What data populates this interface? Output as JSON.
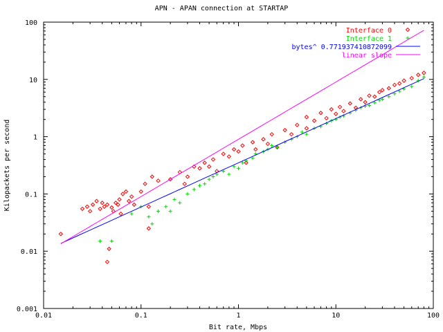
{
  "chart_data": {
    "type": "scatter",
    "title": "APN - APAN connection at STARTAP",
    "xlabel": "Bit rate, Mbps",
    "ylabel": "Kilopackets per second",
    "xscale": "log",
    "yscale": "log",
    "xlim": [
      0.01,
      100
    ],
    "ylim": [
      0.001,
      100
    ],
    "x_ticks": [
      "0.01",
      "0.1",
      "1",
      "10",
      "100"
    ],
    "y_ticks": [
      "0.001",
      "0.01",
      "0.1",
      "1",
      "10",
      "100"
    ],
    "grid": false,
    "legend_position": "top-right",
    "series": [
      {
        "name": "Interface 0",
        "kind": "points",
        "marker": "diamond",
        "color": "#ff0000",
        "points": [
          [
            0.015,
            0.02
          ],
          [
            0.025,
            0.055
          ],
          [
            0.028,
            0.06
          ],
          [
            0.03,
            0.05
          ],
          [
            0.032,
            0.065
          ],
          [
            0.035,
            0.075
          ],
          [
            0.038,
            0.055
          ],
          [
            0.04,
            0.07
          ],
          [
            0.042,
            0.06
          ],
          [
            0.045,
            0.065
          ],
          [
            0.045,
            0.0065
          ],
          [
            0.047,
            0.011
          ],
          [
            0.05,
            0.058
          ],
          [
            0.052,
            0.05
          ],
          [
            0.055,
            0.07
          ],
          [
            0.058,
            0.065
          ],
          [
            0.06,
            0.08
          ],
          [
            0.062,
            0.045
          ],
          [
            0.065,
            0.1
          ],
          [
            0.07,
            0.11
          ],
          [
            0.075,
            0.075
          ],
          [
            0.08,
            0.09
          ],
          [
            0.085,
            0.065
          ],
          [
            0.1,
            0.11
          ],
          [
            0.11,
            0.15
          ],
          [
            0.12,
            0.06
          ],
          [
            0.12,
            0.025
          ],
          [
            0.13,
            0.2
          ],
          [
            0.15,
            0.17
          ],
          [
            0.2,
            0.18
          ],
          [
            0.25,
            0.24
          ],
          [
            0.28,
            0.15
          ],
          [
            0.3,
            0.2
          ],
          [
            0.35,
            0.3
          ],
          [
            0.4,
            0.28
          ],
          [
            0.45,
            0.35
          ],
          [
            0.5,
            0.3
          ],
          [
            0.55,
            0.4
          ],
          [
            0.6,
            0.25
          ],
          [
            0.7,
            0.5
          ],
          [
            0.8,
            0.45
          ],
          [
            0.9,
            0.6
          ],
          [
            1.0,
            0.55
          ],
          [
            1.1,
            0.7
          ],
          [
            1.2,
            0.35
          ],
          [
            1.4,
            0.8
          ],
          [
            1.5,
            0.6
          ],
          [
            1.8,
            0.9
          ],
          [
            2.0,
            0.75
          ],
          [
            2.2,
            1.1
          ],
          [
            2.5,
            0.65
          ],
          [
            3.0,
            1.3
          ],
          [
            3.5,
            1.1
          ],
          [
            4.0,
            1.6
          ],
          [
            5.0,
            1.4
          ],
          [
            5.0,
            2.2
          ],
          [
            6.0,
            1.9
          ],
          [
            7.0,
            2.6
          ],
          [
            8.0,
            2.1
          ],
          [
            9.0,
            3.0
          ],
          [
            10.0,
            2.5
          ],
          [
            11.0,
            3.3
          ],
          [
            12.0,
            2.8
          ],
          [
            14.0,
            3.8
          ],
          [
            16.0,
            3.2
          ],
          [
            18.0,
            4.5
          ],
          [
            20.0,
            4.0
          ],
          [
            22.0,
            5.2
          ],
          [
            25.0,
            5.0
          ],
          [
            28.0,
            6.0
          ],
          [
            30.0,
            6.5
          ],
          [
            35.0,
            7.0
          ],
          [
            40.0,
            8.0
          ],
          [
            45.0,
            8.5
          ],
          [
            50.0,
            9.5
          ],
          [
            60.0,
            10.5
          ],
          [
            70.0,
            12.0
          ],
          [
            80.0,
            13.0
          ]
        ]
      },
      {
        "name": "Interface 1",
        "kind": "points",
        "marker": "plus",
        "color": "#00d800",
        "points": [
          [
            0.038,
            0.015
          ],
          [
            0.05,
            0.015
          ],
          [
            0.08,
            0.045
          ],
          [
            0.1,
            0.06
          ],
          [
            0.12,
            0.04
          ],
          [
            0.13,
            0.03
          ],
          [
            0.15,
            0.05
          ],
          [
            0.18,
            0.06
          ],
          [
            0.2,
            0.05
          ],
          [
            0.22,
            0.08
          ],
          [
            0.25,
            0.07
          ],
          [
            0.3,
            0.1
          ],
          [
            0.35,
            0.12
          ],
          [
            0.4,
            0.14
          ],
          [
            0.45,
            0.15
          ],
          [
            0.5,
            0.18
          ],
          [
            0.55,
            0.2
          ],
          [
            0.6,
            0.22
          ],
          [
            0.7,
            0.25
          ],
          [
            0.8,
            0.22
          ],
          [
            0.9,
            0.3
          ],
          [
            1.0,
            0.28
          ],
          [
            1.1,
            0.35
          ],
          [
            1.2,
            0.38
          ],
          [
            1.4,
            0.42
          ],
          [
            1.5,
            0.5
          ],
          [
            1.8,
            0.55
          ],
          [
            2.0,
            0.6
          ],
          [
            2.2,
            0.7
          ],
          [
            2.5,
            0.65
          ],
          [
            3.0,
            0.8
          ],
          [
            3.5,
            0.9
          ],
          [
            4.0,
            1.0
          ],
          [
            4.5,
            1.2
          ],
          [
            5.0,
            1.1
          ],
          [
            6.0,
            1.4
          ],
          [
            7.0,
            1.5
          ],
          [
            8.0,
            1.7
          ],
          [
            9.0,
            1.9
          ],
          [
            10.0,
            2.0
          ],
          [
            11.0,
            2.2
          ],
          [
            12.0,
            2.3
          ],
          [
            14.0,
            2.6
          ],
          [
            16.0,
            2.9
          ],
          [
            18.0,
            3.2
          ],
          [
            20.0,
            3.4
          ],
          [
            22.0,
            3.5
          ],
          [
            25.0,
            3.9
          ],
          [
            28.0,
            4.3
          ],
          [
            30.0,
            4.5
          ],
          [
            35.0,
            5.0
          ],
          [
            40.0,
            5.6
          ],
          [
            45.0,
            6.2
          ],
          [
            50.0,
            6.8
          ],
          [
            60.0,
            7.5
          ],
          [
            70.0,
            9.5
          ],
          [
            80.0,
            11.0
          ]
        ]
      },
      {
        "name": "bytes^ 0.771937410872099",
        "kind": "line",
        "color": "#0000ff",
        "x": [
          0.015,
          80.0
        ]
      },
      {
        "name": "linear slope",
        "kind": "line",
        "color": "#ff00ff",
        "x": [
          0.015,
          80.0
        ]
      }
    ]
  }
}
